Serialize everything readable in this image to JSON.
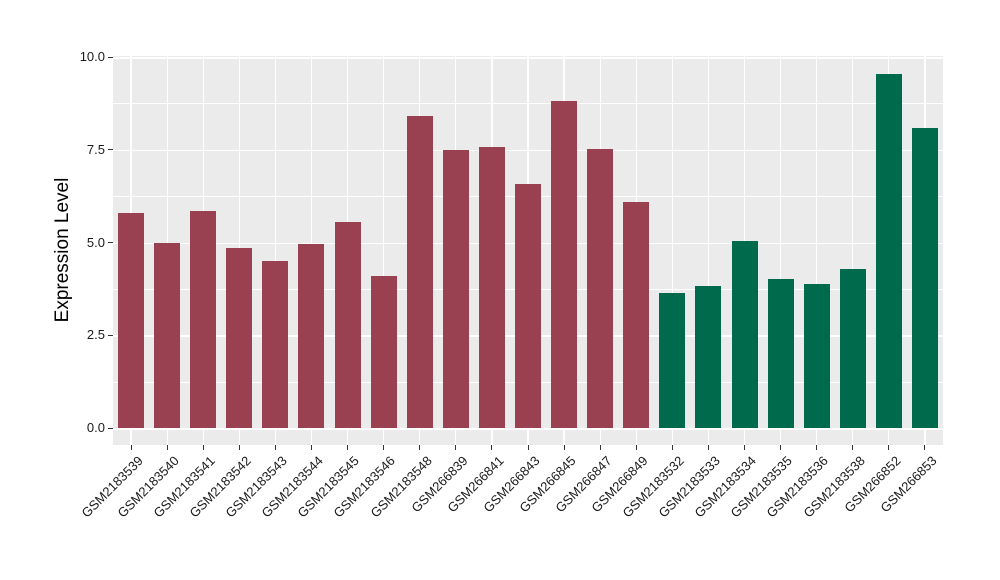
{
  "chart_data": {
    "type": "bar",
    "title": "",
    "xlabel": "",
    "ylabel": "Expression Level",
    "ylim": [
      0,
      10
    ],
    "yticks": [
      0.0,
      2.5,
      5.0,
      7.5,
      10.0
    ],
    "ytick_labels": [
      "0.0",
      "2.5",
      "5.0",
      "7.5",
      "10.0"
    ],
    "yticks_minor": [
      1.25,
      3.75,
      6.25,
      8.75
    ],
    "grid": "major and minor horizontal white gridlines, vertical white gridline at each category, ggplot-style gray panel",
    "legend": "none",
    "panel_background": "#EBEBEB",
    "gridline_color": "#FFFFFF",
    "categories": [
      "GSM2183539",
      "GSM2183540",
      "GSM2183541",
      "GSM2183542",
      "GSM2183543",
      "GSM2183544",
      "GSM2183545",
      "GSM2183546",
      "GSM2183548",
      "GSM266839",
      "GSM266841",
      "GSM266843",
      "GSM266845",
      "GSM266847",
      "GSM266849",
      "GSM2183532",
      "GSM2183533",
      "GSM2183534",
      "GSM2183535",
      "GSM2183536",
      "GSM2183538",
      "GSM266852",
      "GSM266853"
    ],
    "values": [
      5.8,
      5.0,
      5.85,
      4.85,
      4.5,
      4.95,
      5.55,
      4.1,
      8.4,
      7.5,
      7.58,
      6.58,
      8.82,
      7.53,
      6.08,
      3.63,
      3.83,
      5.04,
      4.02,
      3.88,
      4.28,
      9.54,
      8.1
    ],
    "bar_colors": [
      "#9A4151",
      "#9A4151",
      "#9A4151",
      "#9A4151",
      "#9A4151",
      "#9A4151",
      "#9A4151",
      "#9A4151",
      "#9A4151",
      "#9A4151",
      "#9A4151",
      "#9A4151",
      "#9A4151",
      "#9A4151",
      "#9A4151",
      "#006A4C",
      "#006A4C",
      "#006A4C",
      "#006A4C",
      "#006A4C",
      "#006A4C",
      "#006A4C",
      "#006A4C"
    ],
    "group_palette": {
      "red": "#9A4151",
      "green": "#006A4C"
    }
  }
}
